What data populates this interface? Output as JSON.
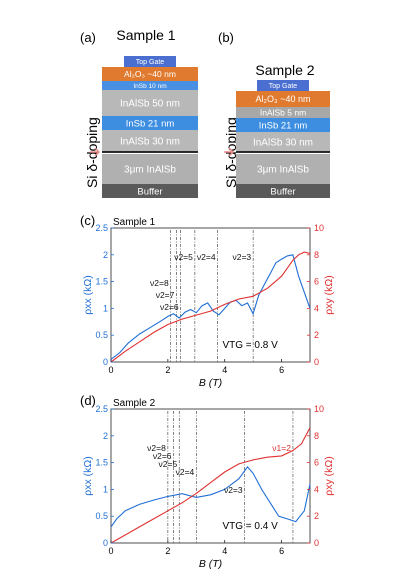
{
  "panel_labels": [
    "(a)",
    "(b)",
    "(c)",
    "(d)"
  ],
  "sample1": {
    "title": "Sample 1",
    "doping_label": "Si δ-doping",
    "layers": [
      {
        "name": "Top Gate",
        "color": "#4a6fd1",
        "text_color": "#ffffff"
      },
      {
        "name": "Al₂O₃ ~40 nm",
        "color": "#e07a2e",
        "text_color": "#ffffff"
      },
      {
        "name": "InSb 10 nm",
        "color": "#4a90e2",
        "text_color": "#ffffff"
      },
      {
        "name": "InAlSb 50 nm",
        "color": "#b8b8b8",
        "text_color": "#ffffff"
      },
      {
        "name": "InSb 21 nm",
        "color": "#3d8ee0",
        "text_color": "#ffffff"
      },
      {
        "name": "InAlSb 30 nm",
        "color": "#b8b8b8",
        "text_color": "#ffffff"
      },
      {
        "name": "3μm InAlSb",
        "color": "#b0b0b0",
        "text_color": "#ffffff"
      },
      {
        "name": "Buffer",
        "color": "#5a5a5a",
        "text_color": "#ffffff"
      }
    ]
  },
  "sample2": {
    "title": "Sample 2",
    "doping_label": "Si δ-doping",
    "layers": [
      {
        "name": "Top Gate",
        "color": "#4a6fd1",
        "text_color": "#ffffff"
      },
      {
        "name": "Al₂O₃ ~40 nm",
        "color": "#e07a2e",
        "text_color": "#ffffff"
      },
      {
        "name": "InAlSb 5 nm",
        "color": "#a8a8a8",
        "text_color": "#ffffff"
      },
      {
        "name": "InSb 21 nm",
        "color": "#3d8ee0",
        "text_color": "#ffffff"
      },
      {
        "name": "InAlSb 30 nm",
        "color": "#b8b8b8",
        "text_color": "#ffffff"
      },
      {
        "name": "3μm InAlSb",
        "color": "#b0b0b0",
        "text_color": "#ffffff"
      },
      {
        "name": "Buffer",
        "color": "#5a5a5a",
        "text_color": "#ffffff"
      }
    ]
  },
  "chart_data": [
    {
      "type": "line",
      "title": "Sample 1",
      "xlabel": "B (T)",
      "ylabel_left": "ρxx (kΩ)",
      "ylabel_right": "ρxy (kΩ)",
      "xlim": [
        0,
        7
      ],
      "ylim_left": [
        0,
        2.5
      ],
      "ylim_right": [
        0,
        10
      ],
      "x_ticks": [
        0,
        2,
        4,
        6
      ],
      "y_ticks_left": [
        0,
        0.5,
        1,
        1.5,
        2,
        2.5
      ],
      "y_ticks_right": [
        0,
        2,
        4,
        6,
        8,
        10
      ],
      "annotation": "VTG = 0.8 V",
      "filling_factors": [
        {
          "label": "ν2=8",
          "x": 2.1
        },
        {
          "label": "ν2=7",
          "x": 2.3
        },
        {
          "label": "ν2=6",
          "x": 2.45
        },
        {
          "label": "ν2=5",
          "x": 2.95
        },
        {
          "label": "ν2=4",
          "x": 3.75
        },
        {
          "label": "ν2=3",
          "x": 5.0
        }
      ],
      "series": [
        {
          "axis": "left",
          "color": "#1f6fd6",
          "x": [
            0,
            0.3,
            0.6,
            1.0,
            1.4,
            1.8,
            2.0,
            2.2,
            2.4,
            2.6,
            2.8,
            3.0,
            3.2,
            3.4,
            3.6,
            3.8,
            4.0,
            4.2,
            4.4,
            4.6,
            4.8,
            5.0,
            5.2,
            5.4,
            5.6,
            5.8,
            6.0,
            6.2,
            6.4,
            6.6,
            6.8,
            7.0
          ],
          "y": [
            0.05,
            0.17,
            0.35,
            0.52,
            0.65,
            0.78,
            0.85,
            0.9,
            0.82,
            0.93,
            0.98,
            0.92,
            1.05,
            1.1,
            0.95,
            0.88,
            1.0,
            1.12,
            1.15,
            1.05,
            1.1,
            0.9,
            1.25,
            1.45,
            1.65,
            1.85,
            1.92,
            1.98,
            2.0,
            1.6,
            1.3,
            1.0
          ]
        },
        {
          "axis": "right",
          "color": "#e03030",
          "x": [
            0,
            0.5,
            1.0,
            1.5,
            2.0,
            2.5,
            3.0,
            3.5,
            4.0,
            4.5,
            5.0,
            5.5,
            6.0,
            6.2,
            6.4,
            6.6,
            6.8,
            7.0
          ],
          "y": [
            0.0,
            0.8,
            1.5,
            2.2,
            2.8,
            3.2,
            3.5,
            3.8,
            4.3,
            4.7,
            4.9,
            5.5,
            6.4,
            7.0,
            7.6,
            8.0,
            8.2,
            8.1
          ]
        }
      ]
    },
    {
      "type": "line",
      "title": "Sample 2",
      "xlabel": "B (T)",
      "ylabel_left": "ρxx (kΩ)",
      "ylabel_right": "ρxy (kΩ)",
      "xlim": [
        0,
        7
      ],
      "ylim_left": [
        0,
        2.5
      ],
      "ylim_right": [
        0,
        10
      ],
      "x_ticks": [
        0,
        2,
        4,
        6
      ],
      "y_ticks_left": [
        0,
        0.5,
        1,
        1.5,
        2,
        2.5
      ],
      "y_ticks_right": [
        0,
        2,
        4,
        6,
        8,
        10
      ],
      "annotation": "VTG = 0.4 V",
      "filling_factors": [
        {
          "label": "ν2=8",
          "x": 2.0
        },
        {
          "label": "ν2=6",
          "x": 2.2
        },
        {
          "label": "ν2=5",
          "x": 2.4
        },
        {
          "label": "ν2=4",
          "x": 3.0
        },
        {
          "label": "ν2=3",
          "x": 4.7
        },
        {
          "label": "ν1=2",
          "x": 6.4
        }
      ],
      "series": [
        {
          "axis": "left",
          "color": "#1f6fd6",
          "x": [
            0,
            0.2,
            0.5,
            1.0,
            1.5,
            2.0,
            2.5,
            3.0,
            3.5,
            4.0,
            4.5,
            4.8,
            5.0,
            5.3,
            5.6,
            5.9,
            6.2,
            6.5,
            6.8,
            7.0
          ],
          "y": [
            0.3,
            0.45,
            0.6,
            0.72,
            0.8,
            0.87,
            0.92,
            0.85,
            0.9,
            1.0,
            1.2,
            1.42,
            1.3,
            1.0,
            0.75,
            0.5,
            0.45,
            0.4,
            0.6,
            1.1
          ]
        },
        {
          "axis": "right",
          "color": "#e03030",
          "x": [
            0,
            0.5,
            1.0,
            1.5,
            2.0,
            2.5,
            3.0,
            3.5,
            4.0,
            4.5,
            5.0,
            5.5,
            6.0,
            6.4,
            6.7,
            7.0
          ],
          "y": [
            0.0,
            0.6,
            1.2,
            1.8,
            2.4,
            3.0,
            3.7,
            4.5,
            5.3,
            5.9,
            6.2,
            6.4,
            6.5,
            6.9,
            7.4,
            8.6
          ]
        }
      ]
    }
  ]
}
